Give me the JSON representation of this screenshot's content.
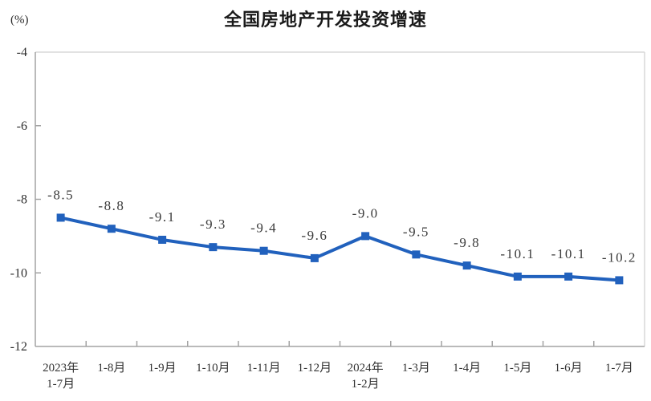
{
  "chart": {
    "title": "全国房地产开发投资增速",
    "unit_label": "(%)",
    "colors": {
      "line": "#2161bd",
      "marker": "#2161bd",
      "axis": "#a3a3a3",
      "border": "#d9d9d9",
      "tick": "#a3a3a3"
    }
  },
  "chart_data": {
    "type": "line",
    "title": "全国房地产开发投资增速",
    "ylabel": "(%)",
    "xlabel": "",
    "categories": [
      "2023年\n1-7月",
      "1-8月",
      "1-9月",
      "1-10月",
      "1-11月",
      "1-12月",
      "2024年\n1-2月",
      "1-3月",
      "1-4月",
      "1-5月",
      "1-6月",
      "1-7月"
    ],
    "values": [
      -8.5,
      -8.8,
      -9.1,
      -9.3,
      -9.4,
      -9.6,
      -9.0,
      -9.5,
      -9.8,
      -10.1,
      -10.1,
      -10.2
    ],
    "data_labels": [
      "-8.5",
      "-8.8",
      "-9.1",
      "-9.3",
      "-9.4",
      "-9.6",
      "-9.0",
      "-9.5",
      "-9.8",
      "-10.1",
      "-10.1",
      "-10.2"
    ],
    "ylim": [
      -12,
      -4
    ],
    "yticks": [
      -4,
      -6,
      -8,
      -10,
      -12
    ],
    "ytick_labels": [
      "-4",
      "-6",
      "-8",
      "-10",
      "-12"
    ],
    "grid": false,
    "legend": null,
    "marker_shape": "square",
    "series_name": "全国房地产开发投资增速"
  }
}
